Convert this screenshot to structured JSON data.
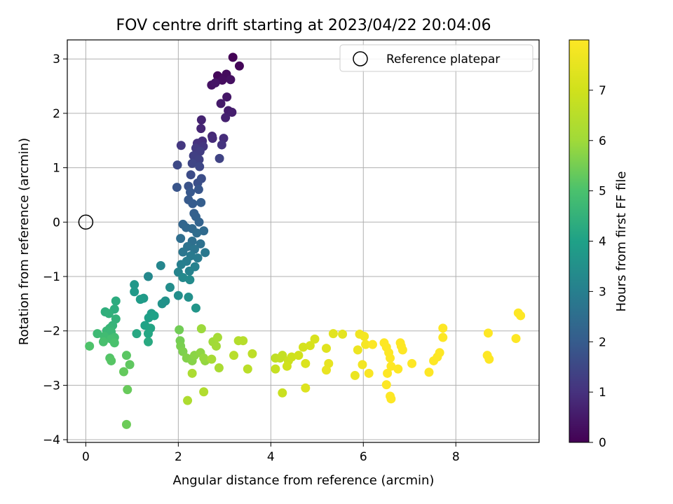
{
  "chart_data": {
    "type": "scatter",
    "title": "FOV centre drift starting at 2023/04/22 20:04:06",
    "xlabel": "Angular distance from reference (arcmin)",
    "ylabel": "Rotation from reference (arcmin)",
    "xlim": [
      -0.4,
      9.8
    ],
    "ylim": [
      -4.05,
      3.35
    ],
    "xticks": [
      0,
      2,
      4,
      6,
      8
    ],
    "yticks": [
      -4,
      -3,
      -2,
      -1,
      0,
      1,
      2,
      3
    ],
    "grid": true,
    "legend": {
      "position": "top-right",
      "label": "Reference platepar"
    },
    "reference_point": {
      "x": 0,
      "y": 0
    },
    "colorbar": {
      "label": "Hours from first FF file",
      "range": [
        0,
        8
      ],
      "ticks": [
        0,
        1,
        2,
        3,
        4,
        5,
        6,
        7
      ],
      "colormap": "viridis"
    },
    "points": [
      [
        3.18,
        3.03,
        0.05
      ],
      [
        3.32,
        2.87,
        0.1
      ],
      [
        2.85,
        2.69,
        0.15
      ],
      [
        3.04,
        2.72,
        0.2
      ],
      [
        2.95,
        2.61,
        0.25
      ],
      [
        3.13,
        2.62,
        0.3
      ],
      [
        2.72,
        2.52,
        0.35
      ],
      [
        2.8,
        2.56,
        0.4
      ],
      [
        3.05,
        2.3,
        0.45
      ],
      [
        2.92,
        2.18,
        0.5
      ],
      [
        3.08,
        2.05,
        0.55
      ],
      [
        3.16,
        2.02,
        0.6
      ],
      [
        3.02,
        1.92,
        0.65
      ],
      [
        2.5,
        1.88,
        0.7
      ],
      [
        2.49,
        1.72,
        0.75
      ],
      [
        2.73,
        1.58,
        0.8
      ],
      [
        2.74,
        1.54,
        0.85
      ],
      [
        2.98,
        1.54,
        0.9
      ],
      [
        2.52,
        1.49,
        0.95
      ],
      [
        2.41,
        1.45,
        1.0
      ],
      [
        2.94,
        1.42,
        1.05
      ],
      [
        2.54,
        1.39,
        1.1
      ],
      [
        2.06,
        1.41,
        1.15
      ],
      [
        2.38,
        1.36,
        1.2
      ],
      [
        2.47,
        1.3,
        1.25
      ],
      [
        2.33,
        1.22,
        1.3
      ],
      [
        2.45,
        1.15,
        1.35
      ],
      [
        2.89,
        1.17,
        1.4
      ],
      [
        2.3,
        1.08,
        1.45
      ],
      [
        2.46,
        1.02,
        1.5
      ],
      [
        1.98,
        1.05,
        1.55
      ],
      [
        2.27,
        0.87,
        1.6
      ],
      [
        2.5,
        0.8,
        1.65
      ],
      [
        2.42,
        0.72,
        1.7
      ],
      [
        2.22,
        0.66,
        1.75
      ],
      [
        1.97,
        0.64,
        1.8
      ],
      [
        2.44,
        0.6,
        1.85
      ],
      [
        2.26,
        0.55,
        1.9
      ],
      [
        2.22,
        0.41,
        1.95
      ],
      [
        2.31,
        0.34,
        2.0
      ],
      [
        2.49,
        0.36,
        2.05
      ],
      [
        2.34,
        0.16,
        2.1
      ],
      [
        2.38,
        0.1,
        2.15
      ],
      [
        2.45,
        0.0,
        2.2
      ],
      [
        2.1,
        -0.04,
        2.25
      ],
      [
        2.17,
        -0.1,
        2.3
      ],
      [
        2.3,
        -0.12,
        2.35
      ],
      [
        2.55,
        -0.16,
        2.4
      ],
      [
        2.4,
        -0.2,
        2.45
      ],
      [
        2.05,
        -0.3,
        2.5
      ],
      [
        2.3,
        -0.35,
        2.55
      ],
      [
        2.48,
        -0.4,
        2.6
      ],
      [
        2.2,
        -0.45,
        2.65
      ],
      [
        2.35,
        -0.5,
        2.7
      ],
      [
        2.1,
        -0.55,
        2.75
      ],
      [
        2.58,
        -0.56,
        2.8
      ],
      [
        2.27,
        -0.62,
        2.85
      ],
      [
        2.42,
        -0.66,
        2.9
      ],
      [
        2.18,
        -0.72,
        2.95
      ],
      [
        2.06,
        -0.78,
        3.0
      ],
      [
        2.36,
        -0.82,
        3.05
      ],
      [
        2.24,
        -0.9,
        3.1
      ],
      [
        2.0,
        -0.92,
        3.15
      ],
      [
        1.62,
        -0.8,
        3.2
      ],
      [
        1.35,
        -1.0,
        3.25
      ],
      [
        2.1,
        -1.02,
        3.3
      ],
      [
        2.25,
        -1.06,
        3.35
      ],
      [
        1.82,
        -1.2,
        3.4
      ],
      [
        2.0,
        -1.35,
        3.45
      ],
      [
        2.22,
        -1.38,
        3.5
      ],
      [
        1.72,
        -1.45,
        3.55
      ],
      [
        1.65,
        -1.5,
        3.6
      ],
      [
        2.38,
        -1.58,
        3.65
      ],
      [
        1.05,
        -1.15,
        3.7
      ],
      [
        1.05,
        -1.28,
        3.75
      ],
      [
        1.25,
        -1.4,
        3.8
      ],
      [
        1.18,
        -1.42,
        3.85
      ],
      [
        1.42,
        -1.68,
        3.9
      ],
      [
        1.36,
        -1.76,
        3.95
      ],
      [
        1.48,
        -1.72,
        4.0
      ],
      [
        1.28,
        -1.9,
        4.05
      ],
      [
        1.4,
        -1.95,
        4.1
      ],
      [
        1.35,
        -2.05,
        4.15
      ],
      [
        1.1,
        -2.05,
        4.2
      ],
      [
        1.35,
        -2.2,
        4.25
      ],
      [
        0.65,
        -1.45,
        4.3
      ],
      [
        0.62,
        -1.6,
        4.35
      ],
      [
        0.42,
        -1.65,
        4.4
      ],
      [
        0.5,
        -1.68,
        4.45
      ],
      [
        0.65,
        -1.78,
        4.5
      ],
      [
        0.58,
        -1.9,
        4.55
      ],
      [
        0.52,
        -1.95,
        4.6
      ],
      [
        0.45,
        -2.0,
        4.65
      ],
      [
        0.55,
        -2.02,
        4.7
      ],
      [
        0.25,
        -2.05,
        4.75
      ],
      [
        0.4,
        -2.1,
        4.8
      ],
      [
        0.62,
        -2.12,
        4.85
      ],
      [
        0.55,
        -2.15,
        4.9
      ],
      [
        0.38,
        -2.2,
        4.95
      ],
      [
        0.62,
        -2.22,
        5.0
      ],
      [
        0.08,
        -2.28,
        5.05
      ],
      [
        0.52,
        -2.5,
        5.1
      ],
      [
        0.55,
        -2.55,
        5.15
      ],
      [
        0.88,
        -2.45,
        5.2
      ],
      [
        0.95,
        -2.62,
        5.25
      ],
      [
        0.82,
        -2.75,
        5.3
      ],
      [
        0.9,
        -3.08,
        5.35
      ],
      [
        0.88,
        -3.72,
        5.4
      ],
      [
        2.02,
        -1.98,
        5.45
      ],
      [
        2.04,
        -2.18,
        5.5
      ],
      [
        2.05,
        -2.28,
        5.55
      ],
      [
        2.1,
        -2.38,
        5.6
      ],
      [
        2.18,
        -2.5,
        5.65
      ],
      [
        2.3,
        -2.55,
        5.7
      ],
      [
        2.35,
        -2.45,
        5.75
      ],
      [
        2.48,
        -2.4,
        5.8
      ],
      [
        2.58,
        -2.55,
        5.85
      ],
      [
        2.55,
        -2.5,
        5.9
      ],
      [
        2.5,
        -1.96,
        5.95
      ],
      [
        2.75,
        -2.2,
        6.0
      ],
      [
        2.82,
        -2.28,
        6.05
      ],
      [
        2.85,
        -2.12,
        6.1
      ],
      [
        2.72,
        -2.52,
        6.15
      ],
      [
        2.88,
        -2.68,
        6.2
      ],
      [
        2.3,
        -2.78,
        6.25
      ],
      [
        2.2,
        -3.28,
        6.3
      ],
      [
        2.55,
        -3.12,
        6.35
      ],
      [
        3.3,
        -2.18,
        6.4
      ],
      [
        3.4,
        -2.18,
        6.45
      ],
      [
        3.2,
        -2.45,
        6.5
      ],
      [
        3.5,
        -2.7,
        6.55
      ],
      [
        3.6,
        -2.42,
        6.6
      ],
      [
        4.1,
        -2.5,
        6.65
      ],
      [
        4.2,
        -2.5,
        6.7
      ],
      [
        4.25,
        -2.45,
        6.75
      ],
      [
        4.1,
        -2.7,
        6.8
      ],
      [
        4.25,
        -3.14,
        6.85
      ],
      [
        4.38,
        -2.55,
        6.9
      ],
      [
        4.45,
        -2.48,
        6.95
      ],
      [
        4.35,
        -2.65,
        7.0
      ],
      [
        4.6,
        -2.45,
        7.05
      ],
      [
        4.7,
        -2.3,
        7.1
      ],
      [
        4.85,
        -2.27,
        7.15
      ],
      [
        4.95,
        -2.15,
        7.2
      ],
      [
        4.75,
        -2.6,
        7.25
      ],
      [
        4.75,
        -3.05,
        7.3
      ],
      [
        5.2,
        -2.32,
        7.35
      ],
      [
        5.35,
        -2.05,
        7.4
      ],
      [
        5.55,
        -2.06,
        7.45
      ],
      [
        5.25,
        -2.6,
        7.5
      ],
      [
        5.2,
        -2.72,
        7.55
      ],
      [
        5.82,
        -2.82,
        7.6
      ],
      [
        5.88,
        -2.35,
        7.65
      ],
      [
        5.92,
        -2.06,
        7.7
      ],
      [
        5.98,
        -2.62,
        7.75
      ],
      [
        6.02,
        -2.1,
        7.8
      ],
      [
        6.05,
        -2.25,
        7.85
      ],
      [
        6.12,
        -2.78,
        7.9
      ],
      [
        6.2,
        -2.25,
        7.95
      ],
      [
        6.45,
        -2.22,
        8.0
      ],
      [
        6.5,
        -2.3,
        8.05
      ],
      [
        6.55,
        -2.4,
        8.1
      ],
      [
        6.58,
        -2.5,
        8.15
      ],
      [
        6.6,
        -2.65,
        8.2
      ],
      [
        6.52,
        -2.78,
        8.25
      ],
      [
        6.5,
        -2.99,
        8.3
      ],
      [
        6.58,
        -3.2,
        8.35
      ],
      [
        6.6,
        -3.25,
        8.4
      ],
      [
        6.8,
        -2.22,
        8.45
      ],
      [
        6.82,
        -2.28,
        8.5
      ],
      [
        6.85,
        -2.35,
        8.55
      ],
      [
        6.75,
        -2.7,
        8.6
      ],
      [
        7.05,
        -2.6,
        8.65
      ],
      [
        7.42,
        -2.76,
        8.7
      ],
      [
        7.52,
        -2.55,
        8.75
      ],
      [
        7.6,
        -2.48,
        8.8
      ],
      [
        7.65,
        -2.4,
        8.85
      ],
      [
        7.72,
        -1.95,
        8.9
      ],
      [
        7.72,
        -2.12,
        8.95
      ],
      [
        8.68,
        -2.45,
        9.0
      ],
      [
        8.72,
        -2.52,
        9.05
      ],
      [
        8.7,
        -2.04,
        9.1
      ],
      [
        9.3,
        -2.14,
        9.15
      ],
      [
        9.35,
        -1.67,
        9.2
      ],
      [
        9.4,
        -1.72,
        9.25
      ]
    ]
  }
}
